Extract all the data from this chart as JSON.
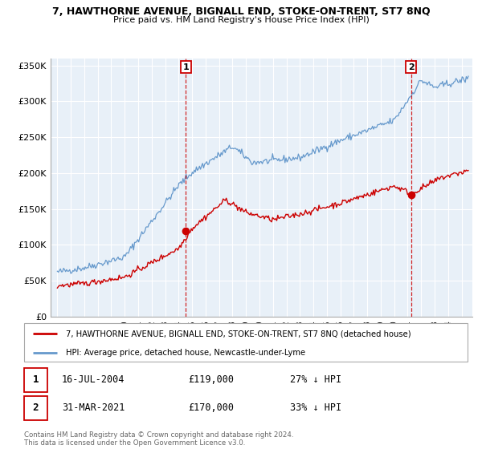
{
  "title": "7, HAWTHORNE AVENUE, BIGNALL END, STOKE-ON-TRENT, ST7 8NQ",
  "subtitle": "Price paid vs. HM Land Registry's House Price Index (HPI)",
  "legend_line1": "7, HAWTHORNE AVENUE, BIGNALL END, STOKE-ON-TRENT, ST7 8NQ (detached house)",
  "legend_line2": "HPI: Average price, detached house, Newcastle-under-Lyme",
  "footnote": "Contains HM Land Registry data © Crown copyright and database right 2024.\nThis data is licensed under the Open Government Licence v3.0.",
  "sale1_x": 2004.54,
  "sale1_y": 119000,
  "sale2_x": 2021.25,
  "sale2_y": 170000,
  "sale1_date": "16-JUL-2004",
  "sale1_price": "£119,000",
  "sale1_hpi": "27% ↓ HPI",
  "sale2_date": "31-MAR-2021",
  "sale2_price": "£170,000",
  "sale2_hpi": "33% ↓ HPI",
  "red_color": "#cc0000",
  "blue_color": "#6699cc",
  "chart_bg": "#e8f0f8",
  "background_color": "#ffffff",
  "grid_color": "#ffffff",
  "ylim": [
    0,
    360000
  ],
  "xlim": [
    1994.5,
    2025.8
  ]
}
